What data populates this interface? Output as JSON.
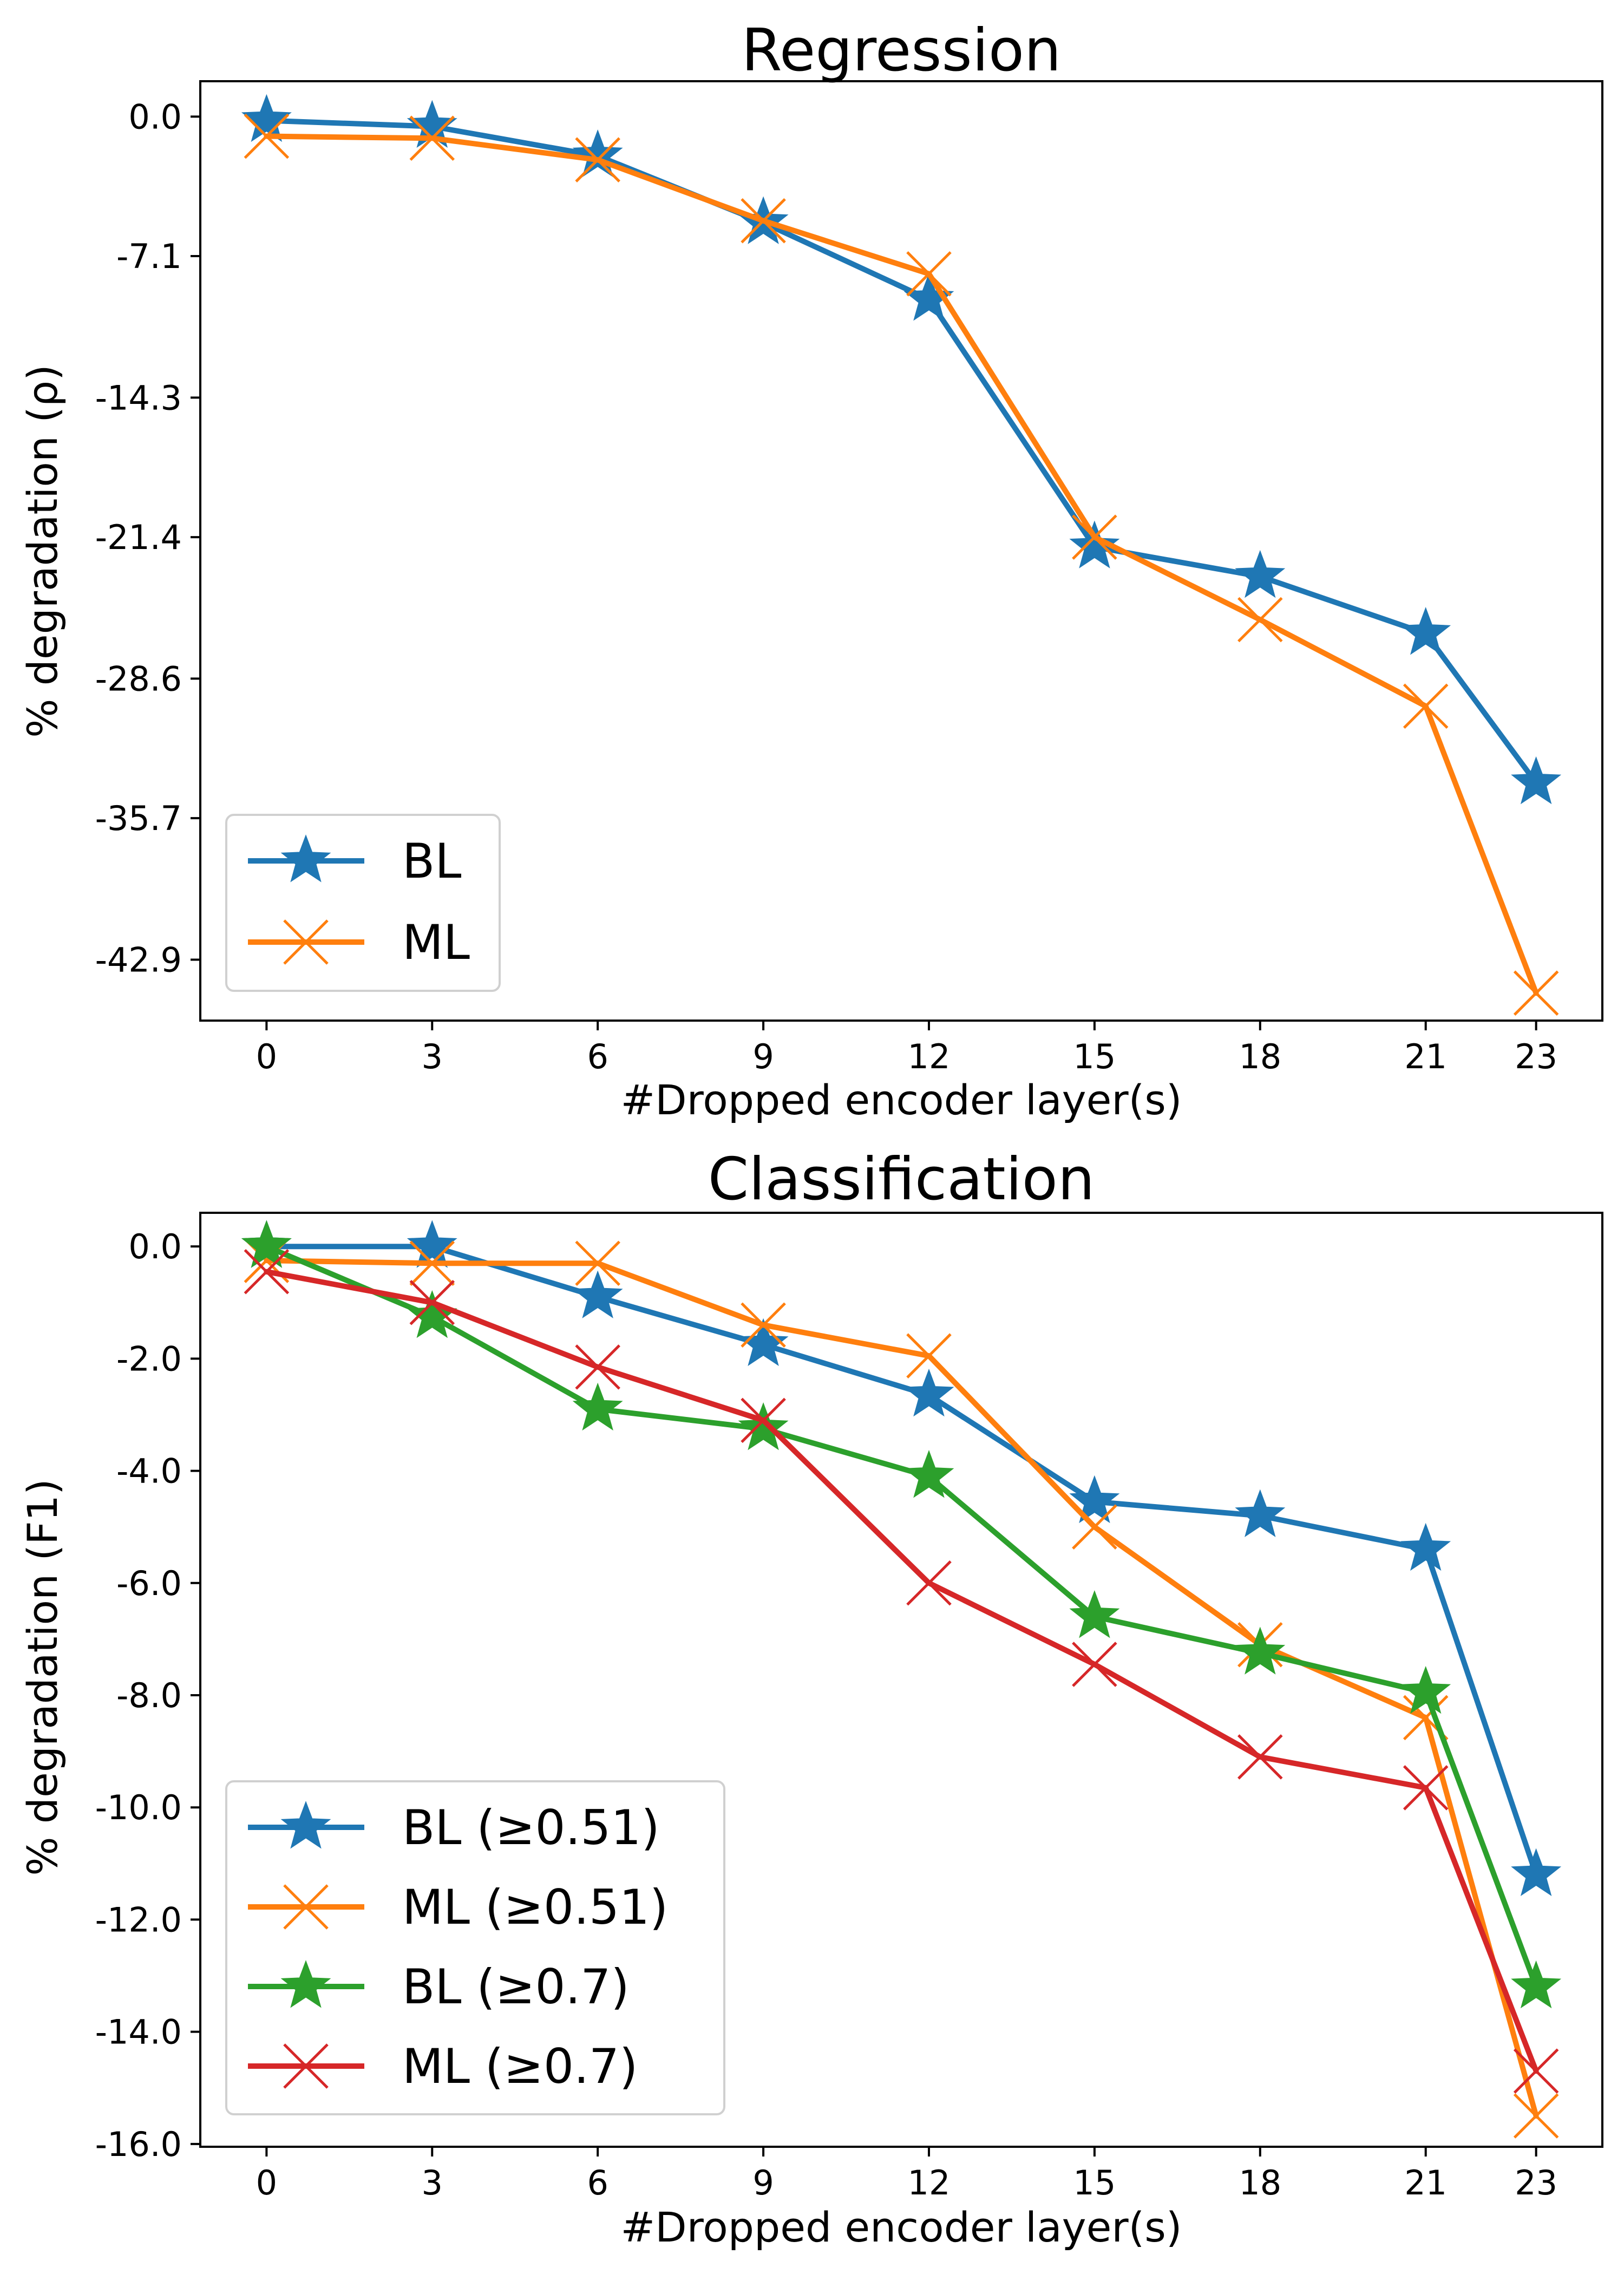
{
  "chart_data": [
    {
      "type": "line",
      "title": "Regression",
      "xlabel": "#Dropped encoder layer(s)",
      "ylabel": "% degradation (ρ)",
      "categories": [
        "0",
        "3",
        "6",
        "9",
        "12",
        "15",
        "18",
        "21",
        "23"
      ],
      "x": [
        0,
        3,
        6,
        9,
        12,
        15,
        18,
        21,
        23
      ],
      "ylim": [
        -46,
        1.8
      ],
      "yticks": [
        0.0,
        -7.1,
        -14.3,
        -21.4,
        -28.6,
        -35.7,
        -42.9
      ],
      "ytick_labels": [
        "0.0",
        "-7.1",
        "-14.3",
        "-21.4",
        "-28.6",
        "-35.7",
        "-42.9"
      ],
      "grid": false,
      "legend_position": "lower-left",
      "series": [
        {
          "name": "BL",
          "marker": "star",
          "color": "#1f77b4",
          "values": [
            -0.2,
            -0.5,
            -2.0,
            -5.4,
            -9.3,
            -21.9,
            -23.4,
            -26.3,
            -33.9
          ]
        },
        {
          "name": "ML",
          "marker": "x",
          "color": "#ff7f0e",
          "values": [
            -1.0,
            -1.1,
            -2.2,
            -5.3,
            -8.0,
            -21.4,
            -25.6,
            -30.0,
            -44.6
          ]
        }
      ]
    },
    {
      "type": "line",
      "title": "Classification",
      "xlabel": "#Dropped encoder layer(s)",
      "ylabel": "% degradation (F1)",
      "categories": [
        "0",
        "3",
        "6",
        "9",
        "12",
        "15",
        "18",
        "21",
        "23"
      ],
      "x": [
        0,
        3,
        6,
        9,
        12,
        15,
        18,
        21,
        23
      ],
      "ylim": [
        -16.05,
        0.6
      ],
      "yticks": [
        0.0,
        -2.0,
        -4.0,
        -6.0,
        -8.0,
        -10.0,
        -12.0,
        -14.0,
        -16.0
      ],
      "ytick_labels": [
        "0.0",
        "-2.0",
        "-4.0",
        "-6.0",
        "-8.0",
        "-10.0",
        "-12.0",
        "-14.0",
        "-16.0"
      ],
      "grid": false,
      "legend_position": "lower-left",
      "series": [
        {
          "name": "BL (≥0.51)",
          "marker": "star",
          "color": "#1f77b4",
          "values": [
            0.0,
            0.0,
            -0.9,
            -1.75,
            -2.65,
            -4.55,
            -4.8,
            -5.4,
            -11.2
          ]
        },
        {
          "name": "ML (≥0.51)",
          "marker": "x",
          "color": "#ff7f0e",
          "values": [
            -0.25,
            -0.3,
            -0.3,
            -1.4,
            -1.95,
            -5.0,
            -7.1,
            -8.4,
            -15.5
          ]
        },
        {
          "name": "BL (≥0.7)",
          "marker": "star",
          "color": "#2ca02c",
          "values": [
            0.0,
            -1.25,
            -2.9,
            -3.25,
            -4.1,
            -6.6,
            -7.25,
            -7.95,
            -13.2
          ]
        },
        {
          "name": "ML (≥0.7)",
          "marker": "x",
          "color": "#d62728",
          "values": [
            -0.45,
            -1.0,
            -2.15,
            -3.1,
            -6.0,
            -7.45,
            -9.1,
            -9.65,
            -14.7
          ]
        }
      ]
    }
  ]
}
